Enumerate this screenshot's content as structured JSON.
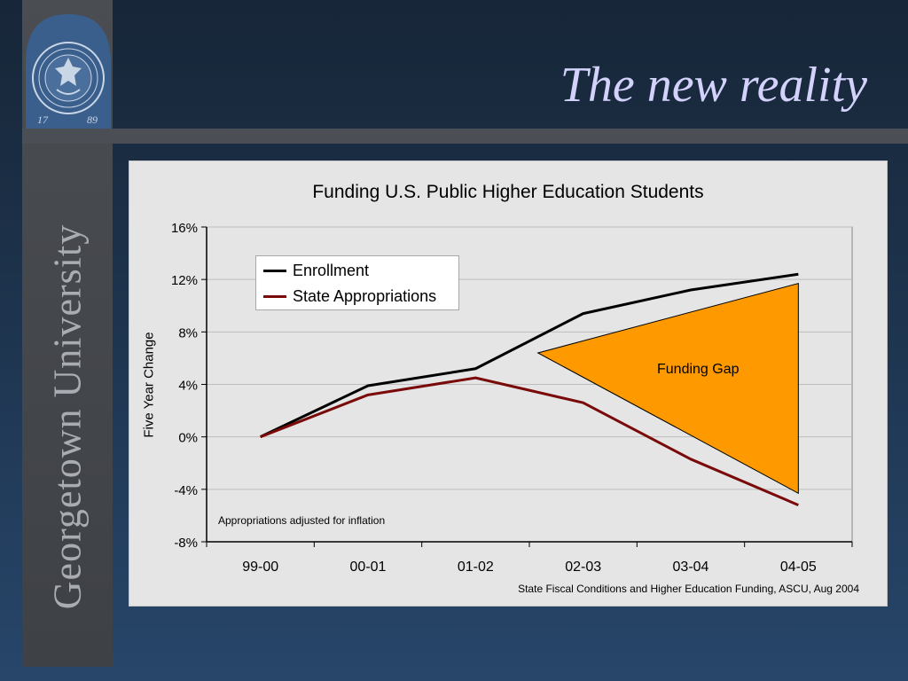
{
  "slide": {
    "title": "The new reality",
    "sidebar_text": "Georgetown University",
    "seal_years": [
      "17",
      "89"
    ]
  },
  "colors": {
    "enrollment": "#000000",
    "state_appropriations": "#7a0a0a",
    "funding_gap_fill": "#ff9900",
    "title": "#d2d2fb",
    "chart_background": "#e5e5e5"
  },
  "chart_data": {
    "type": "line",
    "title": "Funding U.S. Public Higher Education Students",
    "xlabel": "",
    "ylabel": "Five Year Change",
    "categories": [
      "99-00",
      "00-01",
      "01-02",
      "02-03",
      "03-04",
      "04-05"
    ],
    "series": [
      {
        "name": "Enrollment",
        "values": [
          0,
          3.9,
          5.2,
          9.4,
          11.2,
          12.4
        ]
      },
      {
        "name": "State Appropriations",
        "values": [
          0,
          3.2,
          4.5,
          2.6,
          -1.7,
          -5.2
        ]
      }
    ],
    "ylim": [
      -8,
      16
    ],
    "yticks": [
      16,
      12,
      8,
      4,
      0,
      -4,
      -8
    ],
    "ytick_labels": [
      "16%",
      "12%",
      "8%",
      "4%",
      "0%",
      "-4%",
      "-8%"
    ],
    "grid": true,
    "legend_position": "top-left",
    "annotations": {
      "funding_gap_label": "Funding Gap",
      "funding_gap_triangle": [
        {
          "x": 2.58,
          "y": 6.4
        },
        {
          "x": 5.0,
          "y": 11.7
        },
        {
          "x": 5.0,
          "y": -4.3
        }
      ],
      "note": "Appropriations adjusted for inflation",
      "source": "State Fiscal Conditions and Higher Education Funding, ASCU, Aug 2004"
    }
  }
}
